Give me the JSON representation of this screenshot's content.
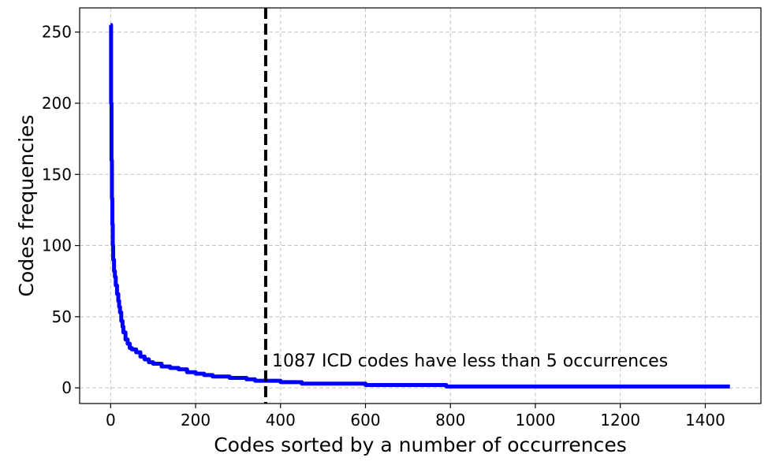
{
  "chart_data": {
    "type": "line",
    "title": "",
    "xlabel": "Codes sorted by a number of occurrences",
    "ylabel": "Codes frequencies",
    "xlim": [
      -73,
      1531
    ],
    "ylim": [
      -11,
      267
    ],
    "xticks": [
      0,
      200,
      400,
      600,
      800,
      1000,
      1200,
      1400
    ],
    "yticks": [
      0,
      50,
      100,
      150,
      200,
      250
    ],
    "grid": true,
    "series": [
      {
        "color": "#0000ff",
        "x": [
          0,
          1,
          2,
          3,
          4,
          5,
          6,
          8,
          10,
          12,
          15,
          18,
          20,
          22,
          25,
          28,
          30,
          35,
          40,
          45,
          50,
          60,
          70,
          80,
          90,
          100,
          120,
          140,
          160,
          180,
          200,
          220,
          240,
          260,
          280,
          300,
          320,
          340,
          365,
          400,
          450,
          500,
          560,
          600,
          700,
          780,
          790,
          900,
          1000,
          1100,
          1200,
          1300,
          1400,
          1458
        ],
        "y": [
          255,
          200,
          160,
          133,
          115,
          100,
          90,
          82,
          78,
          72,
          66,
          61,
          57,
          53,
          47,
          43,
          39,
          34,
          31,
          28,
          27,
          25,
          22,
          20,
          18,
          17,
          15,
          14,
          13,
          11,
          10,
          9,
          8,
          8,
          7,
          7,
          6,
          5,
          5,
          4,
          3,
          3,
          3,
          2,
          2,
          2,
          1,
          1,
          1,
          1,
          1,
          1,
          1,
          1
        ]
      }
    ],
    "vline": {
      "x": 365,
      "style": "dashed",
      "color": "#000000"
    },
    "annotation": {
      "text": "1087 ICD codes have less than 5 occurrences",
      "x": 380,
      "y": 15
    }
  }
}
